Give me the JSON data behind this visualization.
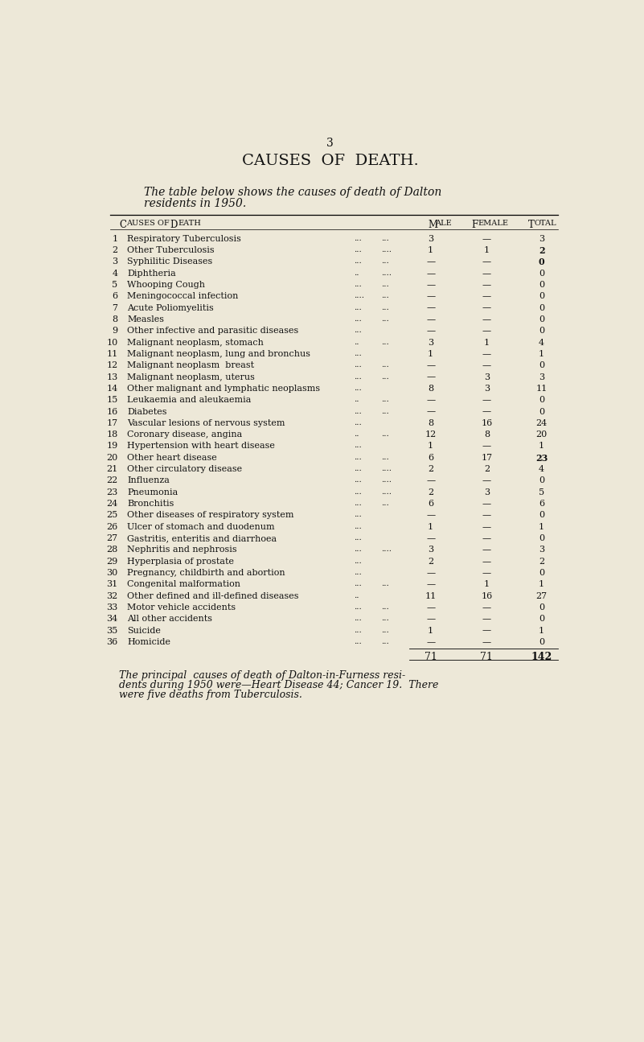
{
  "page_number": "3",
  "main_title": "CAUSES  OF  DEATH.",
  "intro_line1": "The table below shows the causes of death of Dalton",
  "intro_line2": "residents in 1950.",
  "rows": [
    {
      "num": "1",
      "cause": "Respiratory Tuberculosis",
      "dots1": "...",
      "dots2": "...",
      "male": "3",
      "female": "—",
      "total": "3",
      "total_bold": false
    },
    {
      "num": "2",
      "cause": "Other Tuberculosis",
      "dots1": "...",
      "dots2": "....",
      "male": "1",
      "female": "1",
      "total": "2",
      "total_bold": true
    },
    {
      "num": "3",
      "cause": "Syphilitic Diseases",
      "dots1": "...",
      "dots2": "...",
      "male": "—",
      "female": "—",
      "total": "0",
      "total_bold": true
    },
    {
      "num": "4",
      "cause": "Diphtheria",
      "dots1": "..",
      "dots2": "....",
      "male": "—",
      "female": "—",
      "total": "0",
      "total_bold": false
    },
    {
      "num": "5",
      "cause": "Whooping Cough",
      "dots1": "...",
      "dots2": "...",
      "male": "—",
      "female": "—",
      "total": "0",
      "total_bold": false
    },
    {
      "num": "6",
      "cause": "Meningococcal infection",
      "dots1": "....",
      "dots2": "...",
      "male": "—",
      "female": "—",
      "total": "0",
      "total_bold": false
    },
    {
      "num": "7",
      "cause": "Acute Poliomyelitis",
      "dots1": "...",
      "dots2": "...",
      "male": "—",
      "female": "—",
      "total": "0",
      "total_bold": false
    },
    {
      "num": "8",
      "cause": "Measles",
      "dots1": "...",
      "dots2": "...",
      "male": "—",
      "female": "—",
      "total": "0",
      "total_bold": false
    },
    {
      "num": "9",
      "cause": "Other infective and parasitic diseases",
      "dots1": "...",
      "dots2": "",
      "male": "—",
      "female": "—",
      "total": "0",
      "total_bold": false
    },
    {
      "num": "10",
      "cause": "Malignant neoplasm, stomach",
      "dots1": "..",
      "dots2": "...",
      "male": "3",
      "female": "1",
      "total": "4",
      "total_bold": false
    },
    {
      "num": "11",
      "cause": "Malignant neoplasm, lung and bronchus",
      "dots1": "...",
      "dots2": "",
      "male": "1",
      "female": "—",
      "total": "1",
      "total_bold": false
    },
    {
      "num": "12",
      "cause": "Malignant neoplasm  breast",
      "dots1": "...",
      "dots2": "...",
      "male": "—",
      "female": "—",
      "total": "0",
      "total_bold": false
    },
    {
      "num": "13",
      "cause": "Malignant neoplasm, uterus",
      "dots1": "...",
      "dots2": "...",
      "male": "—",
      "female": "3",
      "total": "3",
      "total_bold": false
    },
    {
      "num": "14",
      "cause": "Other malignant and lymphatic neoplasms",
      "dots1": "...",
      "dots2": "",
      "male": "8",
      "female": "3",
      "total": "11",
      "total_bold": false
    },
    {
      "num": "15",
      "cause": "Leukaemia and aleukaemia",
      "dots1": "..",
      "dots2": "...",
      "male": "—",
      "female": "—",
      "total": "0",
      "total_bold": false
    },
    {
      "num": "16",
      "cause": "Diabetes",
      "dots1": "...",
      "dots2": "...",
      "male": "—",
      "female": "—",
      "total": "0",
      "total_bold": false
    },
    {
      "num": "17",
      "cause": "Vascular lesions of nervous system",
      "dots1": "...",
      "dots2": "",
      "male": "8",
      "female": "16",
      "total": "24",
      "total_bold": false
    },
    {
      "num": "18",
      "cause": "Coronary disease, angina",
      "dots1": "..",
      "dots2": "...",
      "male": "12",
      "female": "8",
      "total": "20",
      "total_bold": false
    },
    {
      "num": "19",
      "cause": "Hypertension with heart disease",
      "dots1": "...",
      "dots2": "",
      "male": "1",
      "female": "—",
      "total": "1",
      "total_bold": false
    },
    {
      "num": "20",
      "cause": "Other heart disease",
      "dots1": "...",
      "dots2": "...",
      "male": "6",
      "female": "17",
      "total": "23",
      "total_bold": true
    },
    {
      "num": "21",
      "cause": "Other circulatory disease",
      "dots1": "...",
      "dots2": "....",
      "male": "2",
      "female": "2",
      "total": "4",
      "total_bold": false
    },
    {
      "num": "22",
      "cause": "Influenza",
      "dots1": "...",
      "dots2": "....",
      "male": "—",
      "female": "—",
      "total": "0",
      "total_bold": false
    },
    {
      "num": "23",
      "cause": "Pneumonia",
      "dots1": "...",
      "dots2": "....",
      "male": "2",
      "female": "3",
      "total": "5",
      "total_bold": false
    },
    {
      "num": "24",
      "cause": "Bronchitis",
      "dots1": "...",
      "dots2": "...",
      "male": "6",
      "female": "—",
      "total": "6",
      "total_bold": false
    },
    {
      "num": "25",
      "cause": "Other diseases of respiratory system",
      "dots1": "...",
      "dots2": "",
      "male": "—",
      "female": "—",
      "total": "0",
      "total_bold": false
    },
    {
      "num": "26",
      "cause": "Ulcer of stomach and duodenum",
      "dots1": "...",
      "dots2": "",
      "male": "1",
      "female": "—",
      "total": "1",
      "total_bold": false
    },
    {
      "num": "27",
      "cause": "Gastritis, enteritis and diarrhoea",
      "dots1": "...",
      "dots2": "",
      "male": "—",
      "female": "—",
      "total": "0",
      "total_bold": false
    },
    {
      "num": "28",
      "cause": "Nephritis and nephrosis",
      "dots1": "...",
      "dots2": "....",
      "male": "3",
      "female": "—",
      "total": "3",
      "total_bold": false
    },
    {
      "num": "29",
      "cause": "Hyperplasia of prostate",
      "dots1": "...",
      "dots2": "",
      "male": "2",
      "female": "—",
      "total": "2",
      "total_bold": false
    },
    {
      "num": "30",
      "cause": "Pregnancy, childbirth and abortion",
      "dots1": "...",
      "dots2": "",
      "male": "—",
      "female": "—",
      "total": "0",
      "total_bold": false
    },
    {
      "num": "31",
      "cause": "Congenital malformation",
      "dots1": "...",
      "dots2": "...",
      "male": "—",
      "female": "1",
      "total": "1",
      "total_bold": false
    },
    {
      "num": "32",
      "cause": "Other defined and ill-defined diseases",
      "dots1": "..",
      "dots2": "",
      "male": "11",
      "female": "16",
      "total": "27",
      "total_bold": false
    },
    {
      "num": "33",
      "cause": "Motor vehicle accidents",
      "dots1": "...",
      "dots2": "...",
      "male": "—",
      "female": "—",
      "total": "0",
      "total_bold": false
    },
    {
      "num": "34",
      "cause": "All other accidents",
      "dots1": "...",
      "dots2": "...",
      "male": "—",
      "female": "—",
      "total": "0",
      "total_bold": false
    },
    {
      "num": "35",
      "cause": "Suicide",
      "dots1": "...",
      "dots2": "...",
      "male": "1",
      "female": "—",
      "total": "1",
      "total_bold": false
    },
    {
      "num": "36",
      "cause": "Homicide",
      "dots1": "...",
      "dots2": "...",
      "male": "—",
      "female": "—",
      "total": "0",
      "total_bold": false
    }
  ],
  "totals_male": "71",
  "totals_female": "71",
  "totals_total": "142",
  "footer_line1": "The principal  causes of death of Dalton-in-Furness resi-",
  "footer_line2": "dents during 1950 were—Heart Disease 44; Cancer 19.  There",
  "footer_line3": "were five deaths from Tuberculosis.",
  "bg_color": "#ede8d8",
  "text_color": "#111111"
}
